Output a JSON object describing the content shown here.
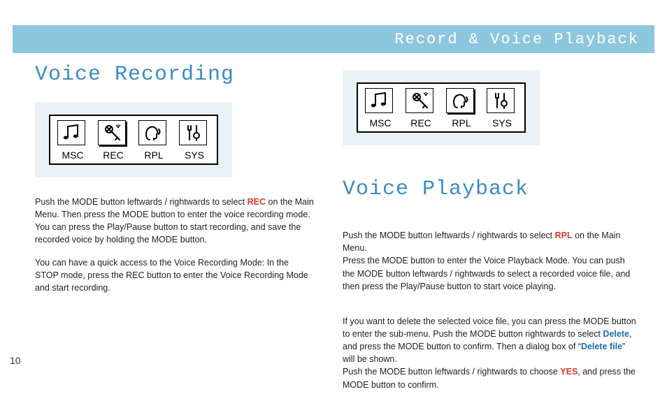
{
  "header": {
    "title": "Record & Voice Playback"
  },
  "page_number": "10",
  "colors": {
    "header_bg": "#8ec7dd",
    "heading_text": "#3a8cc4",
    "menu_panel_bg": "#e8f2f7",
    "kw_red": "#d93a2b",
    "kw_blue": "#1a6fb0"
  },
  "menu": {
    "items": [
      {
        "label": "MSC",
        "icon": "music-note-icon"
      },
      {
        "label": "REC",
        "icon": "mic-icon"
      },
      {
        "label": "RPL",
        "icon": "head-speak-icon"
      },
      {
        "label": "SYS",
        "icon": "tools-icon"
      }
    ],
    "left_selected_index": 1,
    "right_selected_index": 2
  },
  "left": {
    "heading": "Voice Recording",
    "p1_a": "Push the MODE button leftwards / rightwards to select ",
    "p1_kw": "REC",
    "p1_b": " on the Main Menu. Then press the MODE  button to enter the voice recording mode. You can press the Play/Pause button to start recording, and save the recorded voice by holding the MODE button.",
    "p2": "You can have a quick access to the Voice Recording Mode: In the STOP mode, press the REC button to enter the Voice Recording Mode and start recording."
  },
  "right": {
    "heading": "Voice Playback",
    "p1_a": "Push the MODE button leftwards / rightwards to select ",
    "p1_kw": "RPL",
    "p1_b": " on the Main Menu.\nPress the MODE button to enter the Voice Playback Mode. You can push the MODE button leftwards / rightwards to select a recorded voice file, and then press the Play/Pause button to start voice playing.",
    "p2_a": "If you want to delete the selected voice file, you can press the MODE button to enter the sub-menu. Push the MODE button rightwards to select ",
    "p2_kw1": "Delete",
    "p2_b": ", and press the MODE button to confirm. Then a dialog box of “",
    "p2_kw2": "Delete file",
    "p2_c": "” will be shown.\nPush the MODE button leftwards / rightwards to choose ",
    "p2_kw3": "YES",
    "p2_d": ", and press the MODE button to confirm."
  }
}
